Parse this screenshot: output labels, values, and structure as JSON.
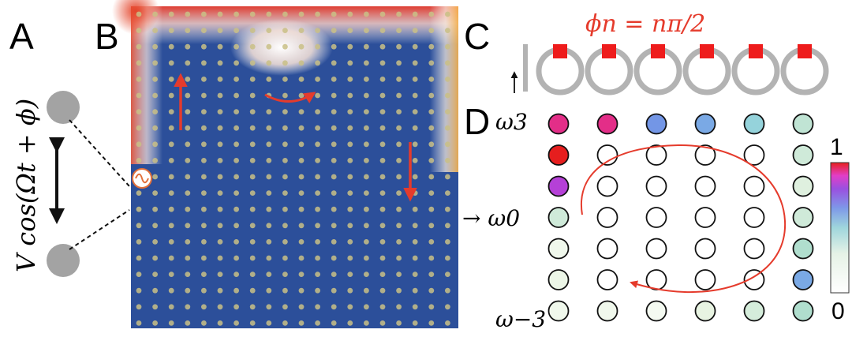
{
  "panels": {
    "a": {
      "label": "A",
      "drive_label": "V cos(Ωt + ϕ)"
    },
    "b": {
      "label": "B",
      "lattice": {
        "rows": 20,
        "cols": 20
      }
    },
    "c": {
      "label": "C",
      "phase_formula": "ϕn = nπ/2",
      "ring_count": 6
    },
    "d": {
      "label": "D",
      "row_labels": {
        "top": "ω3",
        "middle": "→ ω0",
        "bottom": "ω−3"
      },
      "colorbar": {
        "max_label": "1",
        "min_label": "0"
      },
      "intensity_grid": [
        [
          0.95,
          0.95,
          0.6,
          0.55,
          0.4,
          0.25
        ],
        [
          1.0,
          0.0,
          0.0,
          0.0,
          0.0,
          0.2
        ],
        [
          0.85,
          0.0,
          0.0,
          0.0,
          0.0,
          0.15
        ],
        [
          0.2,
          0.0,
          0.0,
          0.0,
          0.0,
          0.2
        ],
        [
          0.08,
          0.0,
          0.0,
          0.0,
          0.0,
          0.3
        ],
        [
          0.1,
          0.0,
          0.0,
          0.0,
          0.0,
          0.55
        ],
        [
          0.08,
          0.08,
          0.06,
          0.12,
          0.18,
          0.3
        ]
      ]
    }
  },
  "colors": {
    "accent_red": "#e53b2c",
    "ring_gray": "#b3b3b3",
    "lattice_blue": "#2c4f9a"
  }
}
